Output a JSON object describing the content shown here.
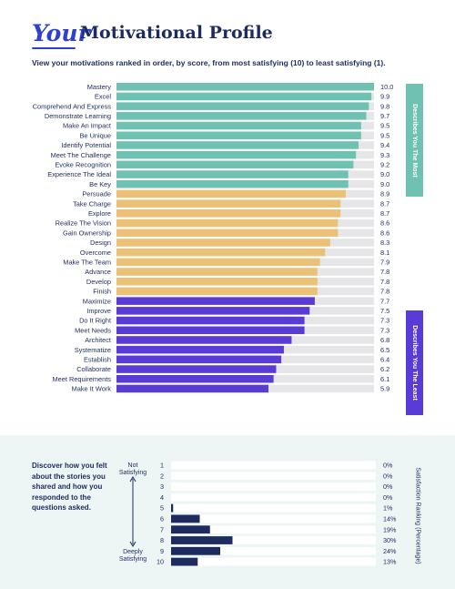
{
  "header": {
    "title_script": "Your",
    "title_main": "Motivational Profile",
    "subtitle": "View your motivations ranked in order, by score, from most satisfying (10) to least satisfying (1)."
  },
  "side_tabs": {
    "most": "Describes You The Most",
    "least": "Describes You The Least"
  },
  "bottom": {
    "description": "Discover how you felt about the stories you shared and how you responded to the questions asked.",
    "top_anchor": "Not Satisfying",
    "bottom_anchor": "Deeply Satisfying",
    "axis_label": "Satisfaction Ranking (Percentage)"
  },
  "colors": {
    "most": "#6fc2b2",
    "middle": "#ebc077",
    "least": "#5b3bd6",
    "track": "#e6e6e8",
    "navy": "#1d2b5e",
    "panel": "#edf6f5"
  },
  "chart_data": [
    {
      "type": "bar",
      "orientation": "horizontal",
      "xlim": [
        0,
        10
      ],
      "categories": [
        "Mastery",
        "Excel",
        "Comprehend And Express",
        "Demonstrate Learning",
        "Make An Impact",
        "Be Unique",
        "Identify Potential",
        "Meet The Challenge",
        "Evoke Recognition",
        "Experience The Ideal",
        "Be Key",
        "Persuade",
        "Take Charge",
        "Explore",
        "Realize The Vision",
        "Gain Ownership",
        "Design",
        "Overcome",
        "Make The Team",
        "Advance",
        "Develop",
        "Finish",
        "Maximize",
        "Improve",
        "Do It Right",
        "Meet Needs",
        "Architect",
        "Systematize",
        "Establish",
        "Collaborate",
        "Meet Requirements",
        "Make It Work"
      ],
      "values": [
        10.0,
        9.9,
        9.8,
        9.7,
        9.5,
        9.5,
        9.4,
        9.3,
        9.2,
        9.0,
        9.0,
        8.9,
        8.7,
        8.7,
        8.6,
        8.6,
        8.3,
        8.1,
        7.9,
        7.8,
        7.8,
        7.8,
        7.7,
        7.5,
        7.3,
        7.3,
        6.8,
        6.5,
        6.4,
        6.2,
        6.1,
        5.9
      ],
      "value_labels": [
        "10.0",
        "9.9",
        "9.8",
        "9.7",
        "9.5",
        "9.5",
        "9.4",
        "9.3",
        "9.2",
        "9.0",
        "9.0",
        "8.9",
        "8.7",
        "8.7",
        "8.6",
        "8.6",
        "8.3",
        "8.1",
        "7.9",
        "7.8",
        "7.8",
        "7.8",
        "7.7",
        "7.5",
        "7.3",
        "7.3",
        "6.8",
        "6.5",
        "6.4",
        "6.2",
        "6.1",
        "5.9"
      ],
      "groups": [
        {
          "name": "Describes You The Most",
          "count": 11,
          "color": "#6fc2b2"
        },
        {
          "name": "",
          "count": 11,
          "color": "#ebc077"
        },
        {
          "name": "Describes You The Least",
          "count": 10,
          "color": "#5b3bd6"
        }
      ]
    },
    {
      "type": "bar",
      "orientation": "horizontal",
      "xlim": [
        0,
        100
      ],
      "categories": [
        "1",
        "2",
        "3",
        "4",
        "5",
        "6",
        "7",
        "8",
        "9",
        "10"
      ],
      "values": [
        0,
        0,
        0,
        0,
        1,
        14,
        19,
        30,
        24,
        13
      ],
      "value_labels": [
        "0%",
        "0%",
        "0%",
        "0%",
        "1%",
        "14%",
        "19%",
        "30%",
        "24%",
        "13%"
      ],
      "ylabel": "Satisfaction Ranking (Percentage)",
      "color": "#1d2b5e"
    }
  ]
}
